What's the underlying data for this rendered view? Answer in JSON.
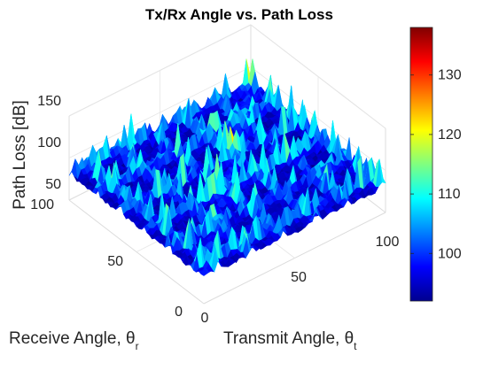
{
  "chart_data": {
    "type": "surface",
    "title": "Tx/Rx Angle vs. Path Loss",
    "zlabel": "Path Loss [dB]",
    "xlabel": {
      "text": "Transmit Angle, θ",
      "subscript": "t"
    },
    "ylabel": {
      "text": "Receive Angle, θ",
      "subscript": "r"
    },
    "x_range": [
      0,
      100
    ],
    "y_range": [
      0,
      100
    ],
    "z_range": [
      50,
      150
    ],
    "x_ticks": [
      "0",
      "50",
      "100"
    ],
    "y_ticks": [
      "0",
      "50",
      "100"
    ],
    "z_ticks": [
      "50",
      "100",
      "150"
    ],
    "colorbar": {
      "range": [
        92,
        138
      ],
      "ticks": [
        "100",
        "110",
        "120",
        "130"
      ],
      "colormap": "jet"
    },
    "surface": {
      "baseline_db": 95,
      "cell_period": 18,
      "ridge_lines_x": [
        8,
        26,
        44,
        62,
        80,
        98
      ],
      "ridge_lines_y": [
        8,
        26,
        44,
        62,
        80,
        98
      ],
      "peak_db": 135
    },
    "grid": true
  }
}
